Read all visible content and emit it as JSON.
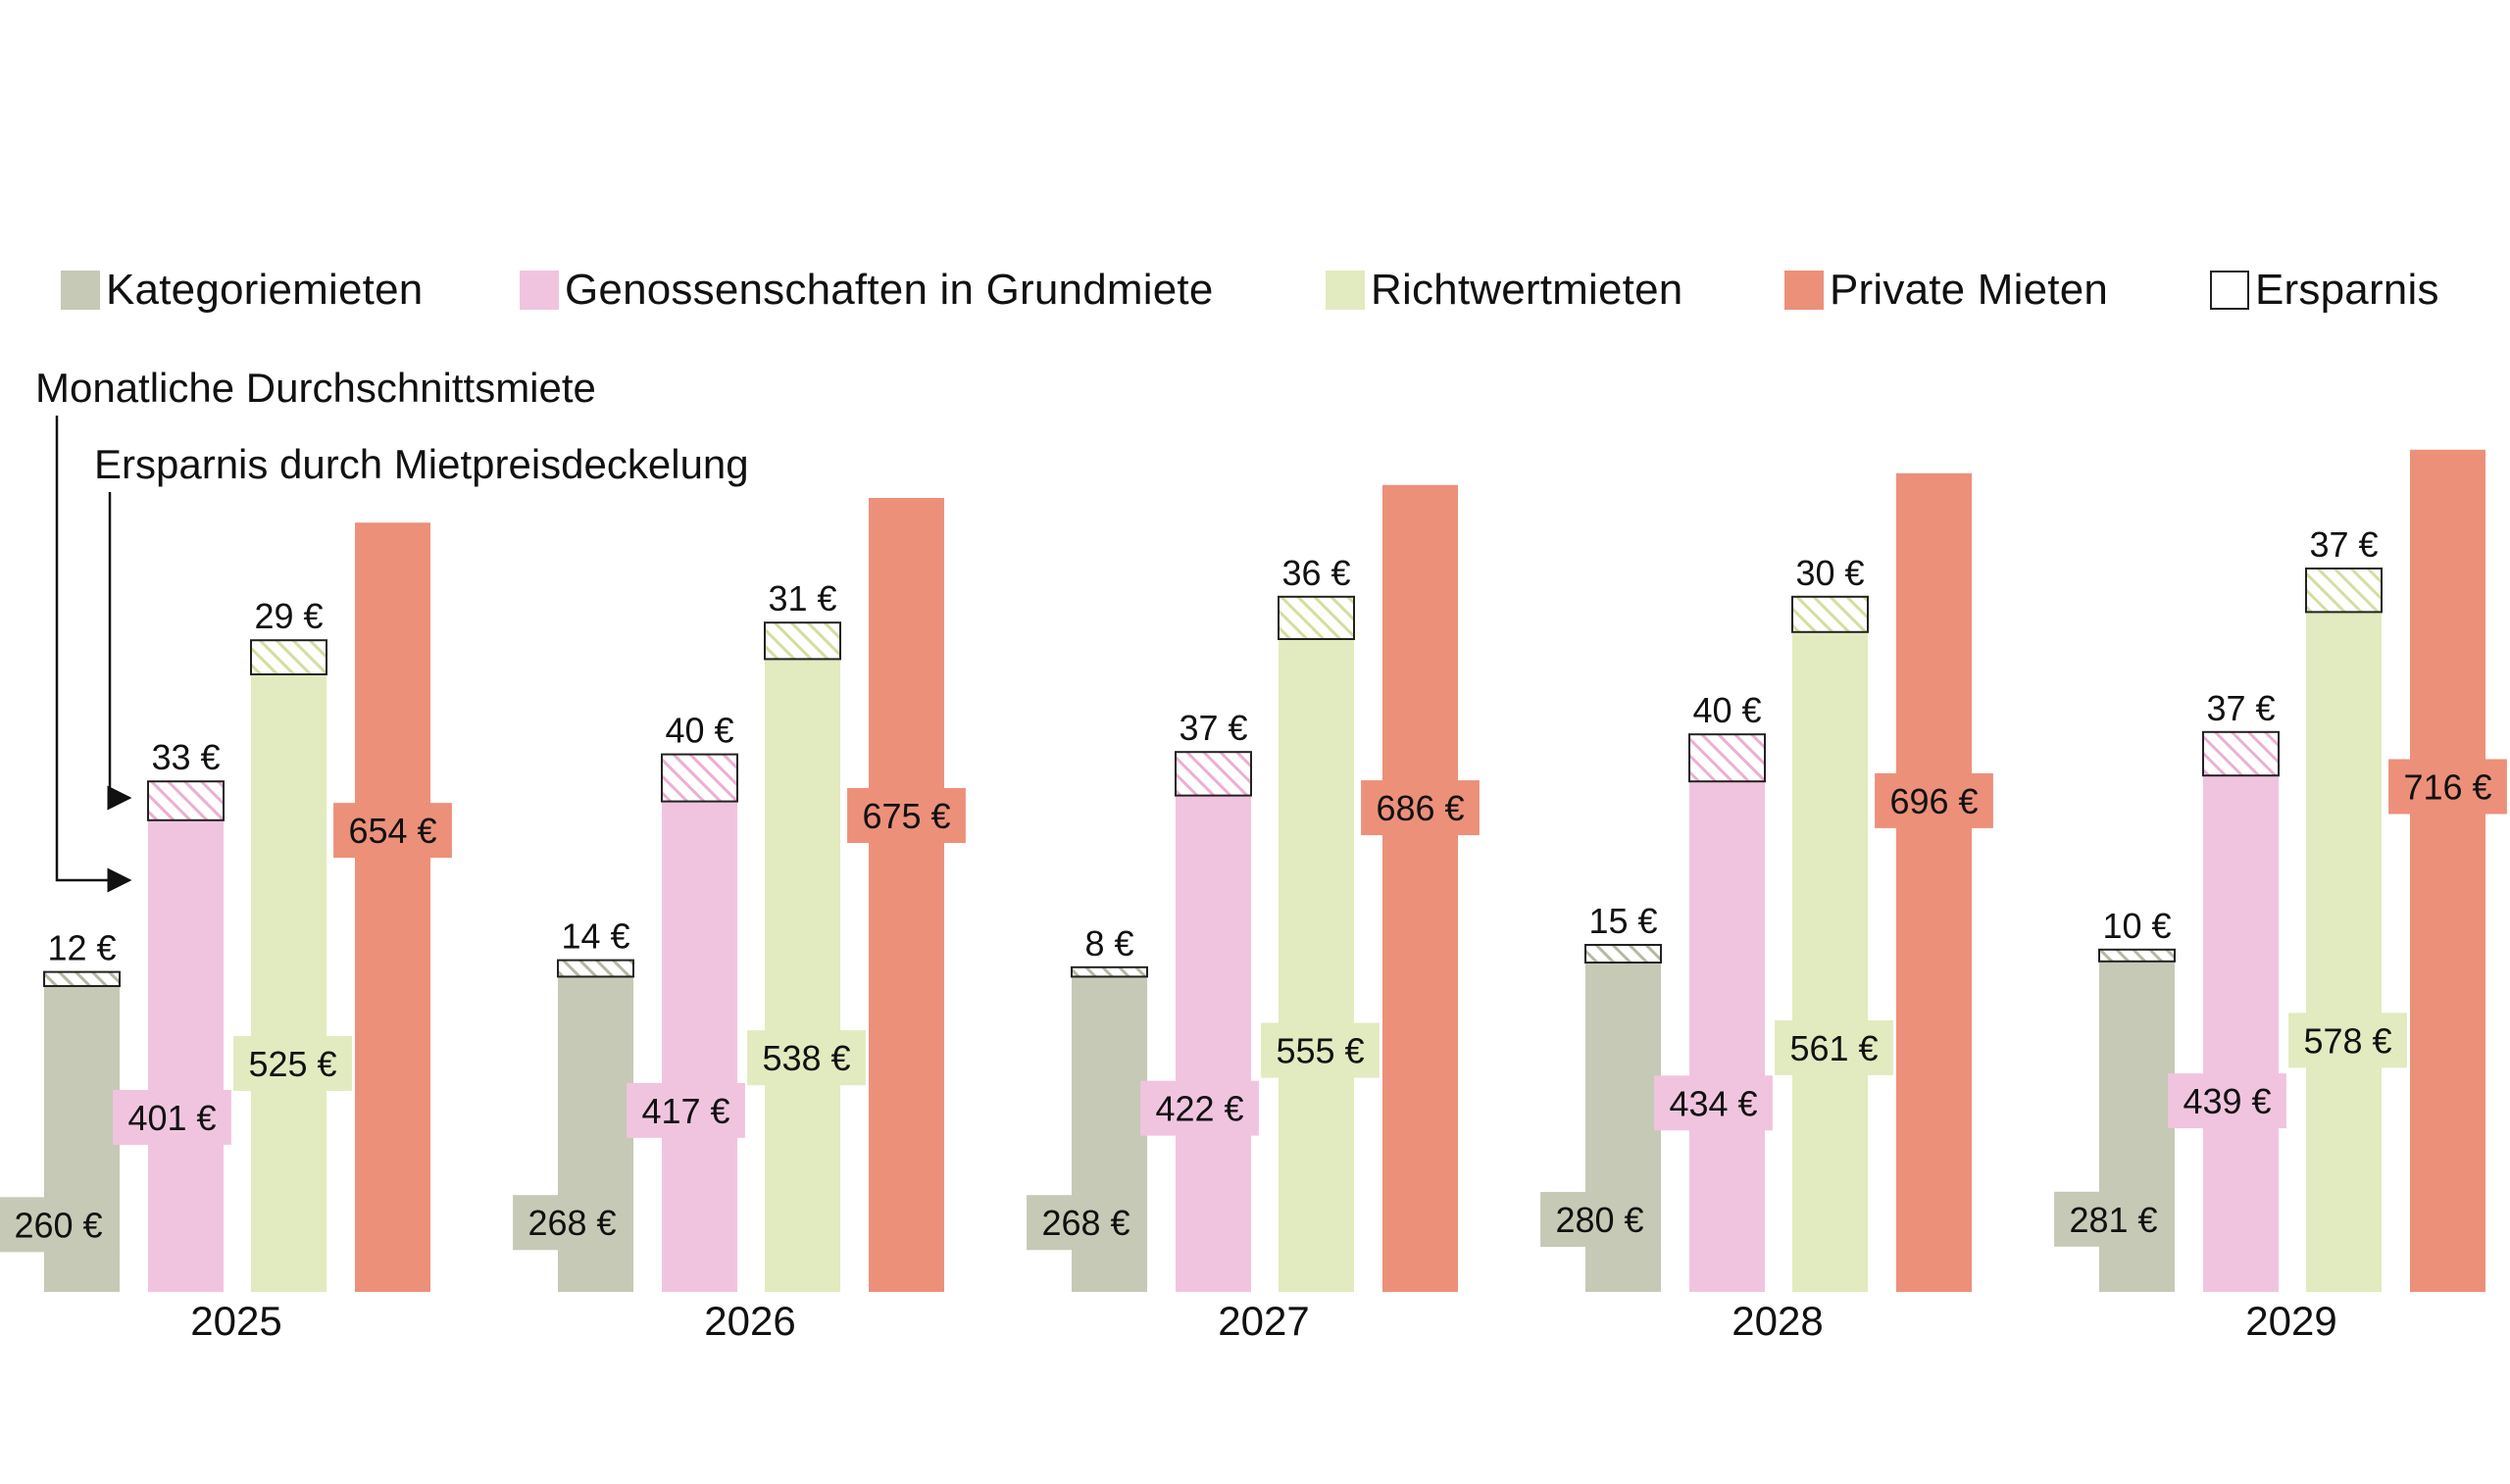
{
  "legend": [
    {
      "label": "Kategoriemieten",
      "color": "#c5c9b5"
    },
    {
      "label": "Genossenschaften in Grundmiete",
      "color": "#f0c4df"
    },
    {
      "label": "Richtwertmieten",
      "color": "#e2eabf"
    },
    {
      "label": "Private Mieten",
      "color": "#ec907a"
    },
    {
      "label": "Ersparnis",
      "color": "#ffffff"
    }
  ],
  "annotations": {
    "average_rent": "Monatliche Durchschnittsmiete",
    "savings": "Ersparnis durch Mietpreisdeckelung"
  },
  "chart_data": {
    "type": "bar",
    "stacked_savings": true,
    "categories": [
      "2025",
      "2026",
      "2027",
      "2028",
      "2029"
    ],
    "currency_suffix": " €",
    "series": [
      {
        "name": "Kategoriemieten",
        "color": "#c5c9b5",
        "values": [
          260,
          268,
          268,
          280,
          281
        ],
        "savings": [
          12,
          14,
          8,
          15,
          10
        ]
      },
      {
        "name": "Genossenschaften in Grundmiete",
        "color": "#f0c4df",
        "values": [
          401,
          417,
          422,
          434,
          439
        ],
        "savings": [
          33,
          40,
          37,
          40,
          37
        ]
      },
      {
        "name": "Richtwertmieten",
        "color": "#e2eabf",
        "values": [
          525,
          538,
          555,
          561,
          578
        ],
        "savings": [
          29,
          31,
          36,
          30,
          37
        ]
      },
      {
        "name": "Private Mieten",
        "color": "#ec907a",
        "values": [
          654,
          675,
          686,
          696,
          716
        ],
        "savings": [
          null,
          null,
          null,
          null,
          null
        ]
      }
    ],
    "ylim": [
      0,
      800
    ],
    "grid": false,
    "legend_position": "top"
  }
}
